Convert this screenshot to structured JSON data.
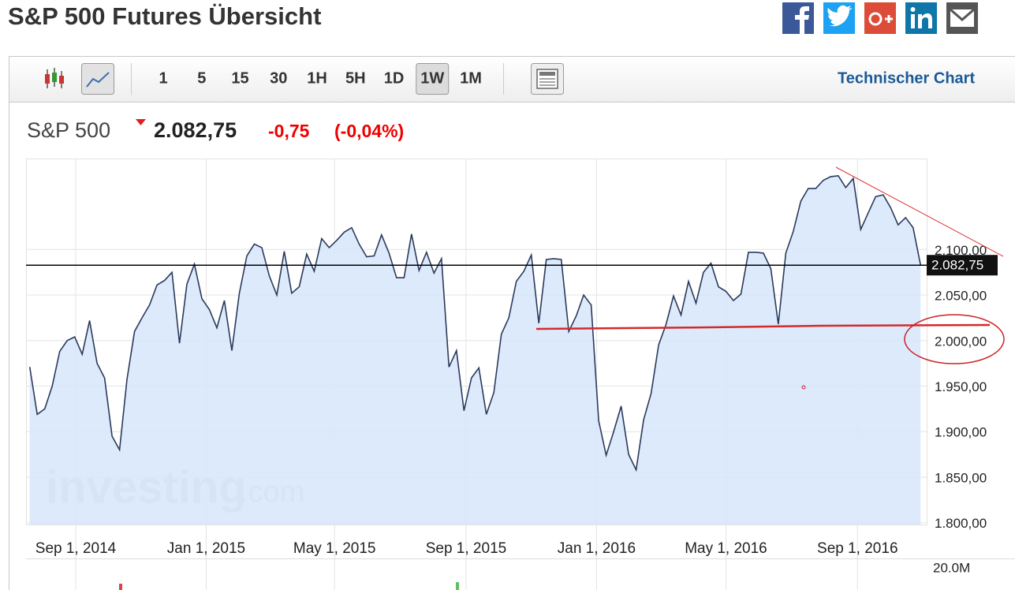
{
  "header": {
    "title": "S&P 500 Futures Übersicht"
  },
  "toolbar": {
    "intervals": [
      "1",
      "5",
      "15",
      "30",
      "1H",
      "5H",
      "1D",
      "1W",
      "1M"
    ],
    "active": "1W",
    "link": "Technischer Chart"
  },
  "quote": {
    "name": "S&P 500",
    "price": "2.082,75",
    "change": "-0,75",
    "change_pct": "(-0,04%)"
  },
  "chart_data": {
    "type": "line",
    "color": "#2b3a5c",
    "fill_color": "#d6e6fa",
    "grid": true,
    "last_price_label": "2.082,75",
    "volume_label": "20.0M",
    "watermark": "investing",
    "watermark_suffix": ".com",
    "x": [
      "2014-07-20",
      "2014-07-27",
      "2014-08-03",
      "2014-08-10",
      "2014-08-17",
      "2014-08-24",
      "2014-08-31",
      "2014-09-07",
      "2014-09-14",
      "2014-09-21",
      "2014-09-28",
      "2014-10-05",
      "2014-10-12",
      "2014-10-19",
      "2014-10-26",
      "2014-11-02",
      "2014-11-09",
      "2014-11-16",
      "2014-11-23",
      "2014-11-30",
      "2014-12-07",
      "2014-12-14",
      "2014-12-21",
      "2014-12-28",
      "2015-01-04",
      "2015-01-11",
      "2015-01-18",
      "2015-01-25",
      "2015-02-01",
      "2015-02-08",
      "2015-02-15",
      "2015-02-22",
      "2015-03-01",
      "2015-03-08",
      "2015-03-15",
      "2015-03-22",
      "2015-03-29",
      "2015-04-05",
      "2015-04-12",
      "2015-04-19",
      "2015-04-26",
      "2015-05-03",
      "2015-05-10",
      "2015-05-17",
      "2015-05-24",
      "2015-05-31",
      "2015-06-07",
      "2015-06-14",
      "2015-06-21",
      "2015-06-28",
      "2015-07-05",
      "2015-07-12",
      "2015-07-19",
      "2015-07-26",
      "2015-08-02",
      "2015-08-09",
      "2015-08-16",
      "2015-08-23",
      "2015-08-30",
      "2015-09-06",
      "2015-09-13",
      "2015-09-20",
      "2015-09-27",
      "2015-10-04",
      "2015-10-11",
      "2015-10-18",
      "2015-10-25",
      "2015-11-01",
      "2015-11-08",
      "2015-11-15",
      "2015-11-22",
      "2015-11-29",
      "2015-12-06",
      "2015-12-13",
      "2015-12-20",
      "2015-12-27",
      "2016-01-03",
      "2016-01-10",
      "2016-01-17",
      "2016-01-24",
      "2016-01-31",
      "2016-02-07",
      "2016-02-14",
      "2016-02-21",
      "2016-02-28",
      "2016-03-06",
      "2016-03-13",
      "2016-03-20",
      "2016-03-27",
      "2016-04-03",
      "2016-04-10",
      "2016-04-17",
      "2016-04-24",
      "2016-05-01",
      "2016-05-08",
      "2016-05-15",
      "2016-05-22",
      "2016-05-29",
      "2016-06-05",
      "2016-06-12",
      "2016-06-19",
      "2016-06-26",
      "2016-07-03",
      "2016-07-10",
      "2016-07-17",
      "2016-07-24",
      "2016-07-31",
      "2016-08-07",
      "2016-08-14",
      "2016-08-21",
      "2016-08-28",
      "2016-09-04",
      "2016-09-11",
      "2016-09-18",
      "2016-09-25",
      "2016-10-02",
      "2016-10-09",
      "2016-10-16",
      "2016-10-23",
      "2016-10-30"
    ],
    "values": [
      1971,
      1919,
      1925,
      1950,
      1988,
      2000,
      2004,
      1985,
      2022,
      1975,
      1959,
      1895,
      1880,
      1958,
      2010,
      2025,
      2039,
      2061,
      2066,
      2075,
      1997,
      2062,
      2084,
      2046,
      2034,
      2014,
      2044,
      1989,
      2052,
      2093,
      2106,
      2102,
      2071,
      2050,
      2098,
      2052,
      2059,
      2095,
      2076,
      2112,
      2102,
      2110,
      2119,
      2124,
      2106,
      2092,
      2093,
      2116,
      2096,
      2069,
      2069,
      2117,
      2077,
      2097,
      2074,
      2090,
      1971,
      1989,
      1923,
      1959,
      1970,
      1919,
      1943,
      2007,
      2025,
      2065,
      2076,
      2094,
      2019,
      2089,
      2090,
      2089,
      2010,
      2027,
      2050,
      2039,
      1912,
      1874,
      1900,
      1928,
      1875,
      1858,
      1913,
      1942,
      1995,
      2018,
      2049,
      2028,
      2065,
      2041,
      2075,
      2085,
      2059,
      2054,
      2044,
      2051,
      2097,
      2097,
      2096,
      2079,
      2018,
      2096,
      2120,
      2153,
      2167,
      2167,
      2176,
      2180,
      2181,
      2168,
      2178,
      2122,
      2140,
      2158,
      2160,
      2146,
      2127,
      2135,
      2124,
      2082.75
    ],
    "xlim": [
      "2014-07-18",
      "2016-11-01"
    ],
    "xticks": [
      {
        "value": "2014-09-01",
        "label": "Sep 1, 2014"
      },
      {
        "value": "2015-01-01",
        "label": "Jan 1, 2015"
      },
      {
        "value": "2015-05-01",
        "label": "May 1, 2015"
      },
      {
        "value": "2015-09-01",
        "label": "Sep 1, 2015"
      },
      {
        "value": "2016-01-01",
        "label": "Jan 1, 2016"
      },
      {
        "value": "2016-05-01",
        "label": "May 1, 2016"
      },
      {
        "value": "2016-09-01",
        "label": "Sep 1, 2016"
      }
    ],
    "ylim": [
      1798,
      2199
    ],
    "yticks": [
      {
        "value": 1800,
        "label": "1.800,00"
      },
      {
        "value": 1850,
        "label": "1.850,00"
      },
      {
        "value": 1900,
        "label": "1.900,00"
      },
      {
        "value": 1950,
        "label": "1.950,00"
      },
      {
        "value": 2000,
        "label": "2.000,00"
      },
      {
        "value": 2050,
        "label": "2.050,00"
      },
      {
        "value": 2100,
        "label": "2.100,00"
      }
    ]
  }
}
